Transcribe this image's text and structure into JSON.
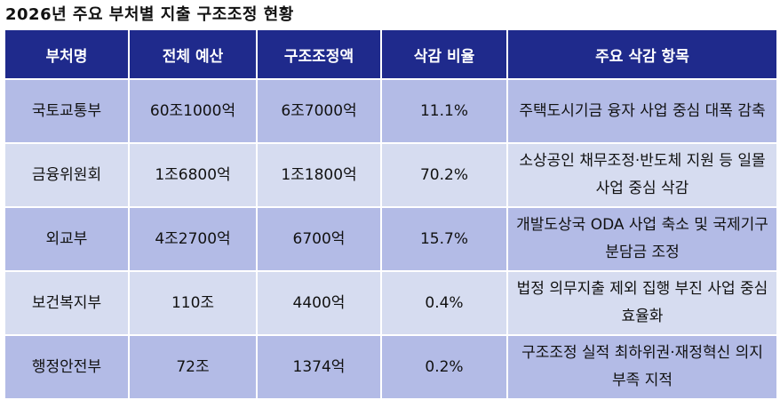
{
  "title": "2026년 주요 부처별 지출 구조조정 현황",
  "table": {
    "headers": [
      "부처명",
      "전체 예산",
      "구조조정액",
      "삭감 비율",
      "주요 삭감 항목"
    ],
    "rows": [
      [
        "국토교통부",
        "60조1000억",
        "6조7000억",
        "11.1%",
        "주택도시기금 융자 사업 중심 대폭 감축"
      ],
      [
        "금융위원회",
        "1조6800억",
        "1조1800억",
        "70.2%",
        "소상공인 채무조정·반도체 지원 등 일몰 사업 중심 삭감"
      ],
      [
        "외교부",
        "4조2700억",
        "6700억",
        "15.7%",
        "개발도상국 ODA 사업 축소 및 국제기구 분담금 조정"
      ],
      [
        "보건복지부",
        "110조",
        "4400억",
        "0.4%",
        "법정 의무지출 제외 집행 부진 사업 중심 효율화"
      ],
      [
        "행정안전부",
        "72조",
        "1374억",
        "0.2%",
        "구조조정 실적 최하위권·재정혁신 의지 부족 지적"
      ]
    ]
  },
  "colors": {
    "header_bg": "#1f2a8c",
    "row_dark": "#b3bbe6",
    "row_light": "#d6dcf0"
  }
}
